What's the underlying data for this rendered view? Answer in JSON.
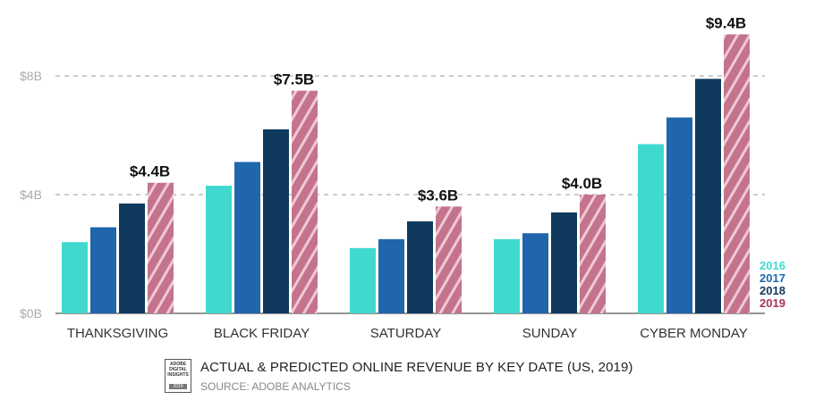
{
  "chart_data": {
    "type": "bar",
    "categories": [
      "THANKSGIVING",
      "BLACK FRIDAY",
      "SATURDAY",
      "SUNDAY",
      "CYBER MONDAY"
    ],
    "series": [
      {
        "name": "2016",
        "values": [
          2.4,
          4.3,
          2.2,
          2.5,
          5.7
        ],
        "color": "#40d9d0"
      },
      {
        "name": "2017",
        "values": [
          2.9,
          5.1,
          2.5,
          2.7,
          6.6
        ],
        "color": "#1f66ac"
      },
      {
        "name": "2018",
        "values": [
          3.7,
          6.2,
          3.1,
          3.4,
          7.9
        ],
        "color": "#0f3a5e"
      },
      {
        "name": "2019",
        "values": [
          4.4,
          7.5,
          3.6,
          4.0,
          9.4
        ],
        "color": "#c4738d",
        "hatched": true
      }
    ],
    "data_labels": [
      "$4.4B",
      "$7.5B",
      "$3.6B",
      "$4.0B",
      "$9.4B"
    ],
    "yticks": [
      {
        "value": 0,
        "label": "$0B"
      },
      {
        "value": 4,
        "label": "$4B"
      },
      {
        "value": 8,
        "label": "$8B"
      }
    ],
    "ylim": [
      0,
      10
    ],
    "grid": "dashed horizontal at ticks",
    "legend_position": "bottom-right",
    "title": "ACTUAL & PREDICTED ONLINE REVENUE BY KEY DATE (US, 2019)",
    "subtitle": "SOURCE: ADOBE ANALYTICS"
  },
  "badge": {
    "line1": "ADOBE",
    "line2": "DIGITAL",
    "line3": "INSIGHTS",
    "year": "2019"
  }
}
